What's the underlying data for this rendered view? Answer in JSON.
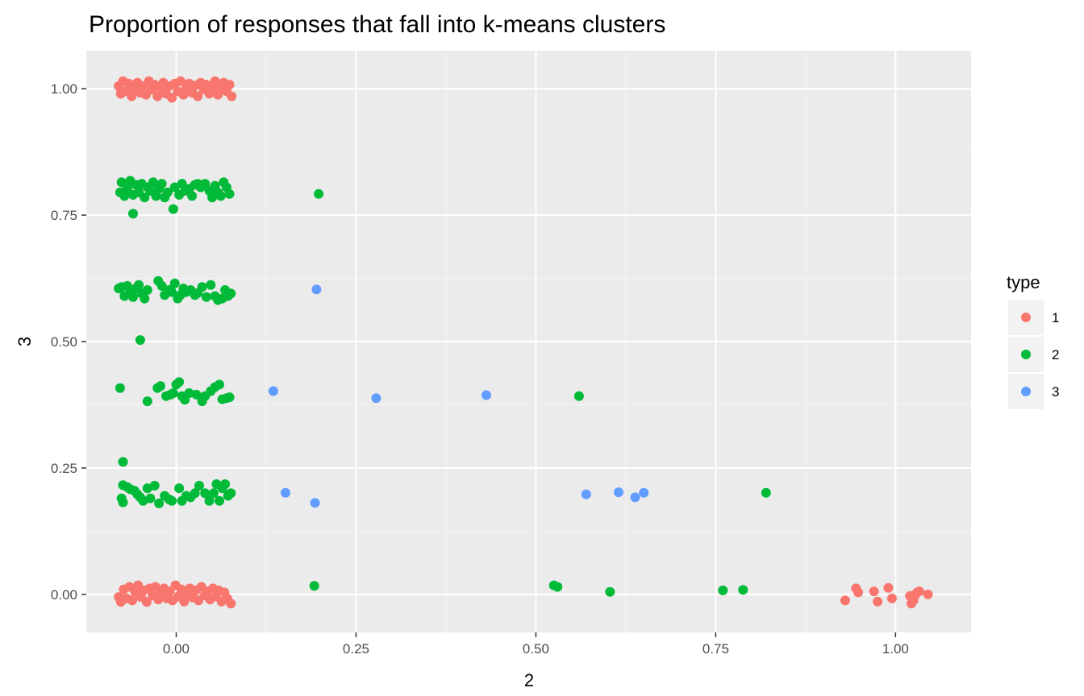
{
  "chart_data": {
    "type": "scatter",
    "title": "Proportion of responses that fall into k-means clusters",
    "xlabel": "2",
    "ylabel": "3",
    "xlim": [
      -0.125,
      1.105
    ],
    "ylim": [
      -0.075,
      1.075
    ],
    "x_ticks": [
      "0.00",
      "0.25",
      "0.50",
      "0.75",
      "1.00"
    ],
    "y_ticks": [
      "0.00",
      "0.25",
      "0.50",
      "0.75",
      "1.00"
    ],
    "grid": true,
    "legend": {
      "title": "type",
      "placement": "right"
    },
    "series": [
      {
        "name": "1",
        "color": "#F8766D",
        "points": [
          [
            -0.08,
            1.005
          ],
          [
            -0.077,
            0.99
          ],
          [
            -0.074,
            1.015
          ],
          [
            -0.07,
            0.995
          ],
          [
            -0.066,
            1.01
          ],
          [
            -0.062,
            0.985
          ],
          [
            -0.058,
            1.0
          ],
          [
            -0.054,
            1.012
          ],
          [
            -0.05,
            0.992
          ],
          [
            -0.046,
            1.005
          ],
          [
            -0.042,
            0.988
          ],
          [
            -0.038,
            1.015
          ],
          [
            -0.034,
            0.998
          ],
          [
            -0.03,
            1.008
          ],
          [
            -0.026,
            0.985
          ],
          [
            -0.022,
            1.002
          ],
          [
            -0.018,
            1.012
          ],
          [
            -0.014,
            0.99
          ],
          [
            -0.01,
            1.005
          ],
          [
            -0.006,
            0.982
          ],
          [
            -0.002,
            1.01
          ],
          [
            0.002,
            0.995
          ],
          [
            0.006,
            1.015
          ],
          [
            0.01,
            0.988
          ],
          [
            0.014,
            1.002
          ],
          [
            0.018,
            1.01
          ],
          [
            0.022,
            0.992
          ],
          [
            0.026,
            1.006
          ],
          [
            0.03,
            0.985
          ],
          [
            0.034,
            1.012
          ],
          [
            0.038,
            0.998
          ],
          [
            0.042,
            1.008
          ],
          [
            0.046,
            0.99
          ],
          [
            0.05,
            1.004
          ],
          [
            0.054,
            1.015
          ],
          [
            0.058,
            0.988
          ],
          [
            0.062,
            1.0
          ],
          [
            0.066,
            1.012
          ],
          [
            0.07,
            0.995
          ],
          [
            0.074,
            1.008
          ],
          [
            0.077,
            0.985
          ],
          [
            -0.06,
            1.003
          ],
          [
            -0.02,
            0.996
          ],
          [
            0.02,
            1.004
          ],
          [
            0.06,
            0.996
          ],
          [
            -0.08,
            -0.005
          ],
          [
            -0.077,
            -0.015
          ],
          [
            -0.073,
            0.01
          ],
          [
            -0.069,
            -0.008
          ],
          [
            -0.065,
            0.015
          ],
          [
            -0.061,
            -0.012
          ],
          [
            -0.057,
            0.005
          ],
          [
            -0.053,
            0.018
          ],
          [
            -0.049,
            -0.005
          ],
          [
            -0.045,
            0.008
          ],
          [
            -0.041,
            -0.015
          ],
          [
            -0.037,
            0.012
          ],
          [
            -0.033,
            -0.002
          ],
          [
            -0.029,
            0.015
          ],
          [
            -0.025,
            -0.01
          ],
          [
            -0.021,
            0.004
          ],
          [
            -0.017,
            0.012
          ],
          [
            -0.013,
            -0.008
          ],
          [
            -0.009,
            0.006
          ],
          [
            -0.005,
            -0.012
          ],
          [
            -0.001,
            0.018
          ],
          [
            0.003,
            -0.004
          ],
          [
            0.007,
            0.01
          ],
          [
            0.011,
            -0.014
          ],
          [
            0.015,
            0.002
          ],
          [
            0.019,
            0.012
          ],
          [
            0.023,
            -0.006
          ],
          [
            0.027,
            0.008
          ],
          [
            0.031,
            -0.012
          ],
          [
            0.035,
            0.015
          ],
          [
            0.039,
            -0.002
          ],
          [
            0.043,
            0.006
          ],
          [
            0.047,
            -0.01
          ],
          [
            0.051,
            0.012
          ],
          [
            0.055,
            -0.004
          ],
          [
            0.059,
            0.008
          ],
          [
            0.063,
            -0.014
          ],
          [
            0.067,
            0.004
          ],
          [
            0.071,
            -0.008
          ],
          [
            0.076,
            -0.018
          ],
          [
            0.93,
            -0.012
          ],
          [
            0.945,
            0.012
          ],
          [
            0.948,
            0.004
          ],
          [
            0.97,
            0.006
          ],
          [
            0.975,
            -0.014
          ],
          [
            0.99,
            0.013
          ],
          [
            0.995,
            -0.008
          ],
          [
            1.02,
            -0.003
          ],
          [
            1.022,
            -0.018
          ],
          [
            1.025,
            -0.012
          ],
          [
            1.028,
            0.0
          ],
          [
            1.03,
            0.004
          ],
          [
            1.033,
            0.006
          ],
          [
            1.045,
            0.0
          ]
        ]
      },
      {
        "name": "2",
        "color": "#00BA38",
        "points": [
          [
            -0.078,
            0.795
          ],
          [
            -0.076,
            0.815
          ],
          [
            -0.072,
            0.788
          ],
          [
            -0.068,
            0.802
          ],
          [
            -0.064,
            0.818
          ],
          [
            -0.06,
            0.79
          ],
          [
            -0.056,
            0.81
          ],
          [
            -0.06,
            0.753
          ],
          [
            -0.052,
            0.795
          ],
          [
            -0.048,
            0.812
          ],
          [
            -0.044,
            0.785
          ],
          [
            -0.04,
            0.805
          ],
          [
            -0.036,
            0.798
          ],
          [
            -0.032,
            0.815
          ],
          [
            -0.028,
            0.788
          ],
          [
            -0.024,
            0.802
          ],
          [
            -0.02,
            0.812
          ],
          [
            -0.016,
            0.785
          ],
          [
            -0.012,
            0.795
          ],
          [
            -0.004,
            0.762
          ],
          [
            -0.002,
            0.805
          ],
          [
            0.004,
            0.79
          ],
          [
            0.008,
            0.812
          ],
          [
            0.012,
            0.798
          ],
          [
            0.018,
            0.802
          ],
          [
            0.022,
            0.788
          ],
          [
            0.026,
            0.81
          ],
          [
            0.03,
            0.812
          ],
          [
            0.034,
            0.805
          ],
          [
            0.04,
            0.812
          ],
          [
            0.046,
            0.798
          ],
          [
            0.05,
            0.785
          ],
          [
            0.054,
            0.808
          ],
          [
            0.058,
            0.795
          ],
          [
            0.062,
            0.788
          ],
          [
            0.066,
            0.815
          ],
          [
            0.07,
            0.805
          ],
          [
            0.074,
            0.792
          ],
          [
            0.198,
            0.792
          ],
          [
            -0.08,
            0.605
          ],
          [
            -0.076,
            0.608
          ],
          [
            -0.072,
            0.59
          ],
          [
            -0.068,
            0.61
          ],
          [
            -0.064,
            0.598
          ],
          [
            -0.06,
            0.588
          ],
          [
            -0.056,
            0.605
          ],
          [
            -0.052,
            0.612
          ],
          [
            -0.048,
            0.595
          ],
          [
            -0.044,
            0.585
          ],
          [
            -0.04,
            0.602
          ],
          [
            -0.025,
            0.62
          ],
          [
            -0.02,
            0.61
          ],
          [
            -0.016,
            0.592
          ],
          [
            -0.01,
            0.602
          ],
          [
            -0.006,
            0.598
          ],
          [
            -0.002,
            0.615
          ],
          [
            0.002,
            0.585
          ],
          [
            0.006,
            0.592
          ],
          [
            0.01,
            0.605
          ],
          [
            0.014,
            0.598
          ],
          [
            0.02,
            0.602
          ],
          [
            0.026,
            0.592
          ],
          [
            0.03,
            0.596
          ],
          [
            0.036,
            0.608
          ],
          [
            0.042,
            0.588
          ],
          [
            0.048,
            0.612
          ],
          [
            0.054,
            0.59
          ],
          [
            0.058,
            0.582
          ],
          [
            0.064,
            0.585
          ],
          [
            0.068,
            0.602
          ],
          [
            0.072,
            0.59
          ],
          [
            0.076,
            0.595
          ],
          [
            -0.05,
            0.503
          ],
          [
            -0.078,
            0.408
          ],
          [
            -0.04,
            0.382
          ],
          [
            -0.026,
            0.408
          ],
          [
            -0.022,
            0.412
          ],
          [
            -0.014,
            0.392
          ],
          [
            -0.008,
            0.395
          ],
          [
            -0.004,
            0.398
          ],
          [
            0.0,
            0.415
          ],
          [
            0.004,
            0.42
          ],
          [
            0.008,
            0.392
          ],
          [
            0.012,
            0.385
          ],
          [
            0.018,
            0.398
          ],
          [
            0.028,
            0.395
          ],
          [
            0.036,
            0.382
          ],
          [
            0.04,
            0.392
          ],
          [
            0.048,
            0.402
          ],
          [
            0.054,
            0.41
          ],
          [
            0.06,
            0.415
          ],
          [
            0.064,
            0.386
          ],
          [
            0.07,
            0.388
          ],
          [
            0.074,
            0.39
          ],
          [
            0.56,
            0.392
          ],
          [
            -0.074,
            0.262
          ],
          [
            -0.074,
            0.216
          ],
          [
            -0.076,
            0.19
          ],
          [
            -0.074,
            0.182
          ],
          [
            -0.068,
            0.212
          ],
          [
            -0.064,
            0.208
          ],
          [
            -0.058,
            0.205
          ],
          [
            -0.054,
            0.198
          ],
          [
            -0.05,
            0.192
          ],
          [
            -0.046,
            0.185
          ],
          [
            -0.04,
            0.21
          ],
          [
            -0.036,
            0.19
          ],
          [
            -0.03,
            0.215
          ],
          [
            -0.024,
            0.18
          ],
          [
            -0.016,
            0.195
          ],
          [
            -0.01,
            0.188
          ],
          [
            -0.006,
            0.185
          ],
          [
            0.004,
            0.21
          ],
          [
            0.008,
            0.185
          ],
          [
            0.014,
            0.195
          ],
          [
            0.02,
            0.192
          ],
          [
            0.026,
            0.2
          ],
          [
            0.032,
            0.215
          ],
          [
            0.04,
            0.2
          ],
          [
            0.046,
            0.185
          ],
          [
            0.052,
            0.2
          ],
          [
            0.056,
            0.218
          ],
          [
            0.06,
            0.185
          ],
          [
            0.064,
            0.21
          ],
          [
            0.068,
            0.218
          ],
          [
            0.072,
            0.195
          ],
          [
            0.076,
            0.2
          ],
          [
            0.82,
            0.201
          ],
          [
            0.192,
            0.017
          ],
          [
            0.525,
            0.018
          ],
          [
            0.53,
            0.015
          ],
          [
            0.603,
            0.005
          ],
          [
            0.76,
            0.008
          ],
          [
            0.788,
            0.009
          ]
        ]
      },
      {
        "name": "3",
        "color": "#619CFF",
        "points": [
          [
            0.195,
            0.603
          ],
          [
            0.135,
            0.402
          ],
          [
            0.278,
            0.388
          ],
          [
            0.431,
            0.394
          ],
          [
            0.152,
            0.201
          ],
          [
            0.193,
            0.181
          ],
          [
            0.57,
            0.198
          ],
          [
            0.615,
            0.202
          ],
          [
            0.638,
            0.192
          ],
          [
            0.65,
            0.201
          ]
        ]
      }
    ]
  }
}
